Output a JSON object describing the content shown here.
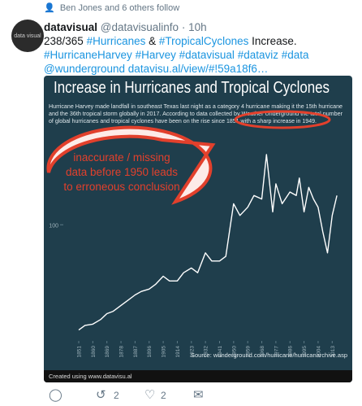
{
  "retweet_context": "Ben Jones and 6 others follow",
  "tweet": {
    "avatar_text": "data visual",
    "display_name": "datavisual",
    "handle": "@datavisualinfo",
    "time": "10h",
    "text_parts": [
      {
        "text": "238/365 ",
        "link": false
      },
      {
        "text": "#Hurricanes",
        "link": true
      },
      {
        "text": " & ",
        "link": false
      },
      {
        "text": "#TropicalCyclones",
        "link": true
      },
      {
        "text": " Increase. ",
        "link": false
      },
      {
        "text": "#HurricaneHarvey",
        "link": true
      },
      {
        "text": " ",
        "link": false
      },
      {
        "text": "#Harvey",
        "link": true
      },
      {
        "text": " ",
        "link": false
      },
      {
        "text": "#datavisual",
        "link": true
      },
      {
        "text": " ",
        "link": false
      },
      {
        "text": "#dataviz",
        "link": true
      },
      {
        "text": " ",
        "link": false
      },
      {
        "text": "#data",
        "link": true
      },
      {
        "text": " ",
        "link": false
      },
      {
        "text": "@wunderground",
        "link": true
      },
      {
        "text": " ",
        "link": false
      },
      {
        "text": "datavisu.al/view/#!59a18f6…",
        "link": true
      }
    ]
  },
  "chart_data": {
    "type": "line",
    "title": "Increase in Hurricanes and Tropical Cyclones",
    "subtitle_lines": [
      "Hurricane Harvey made landfall in southeast Texas last night as a category 4 hurricane making it the 15th hurricane",
      "and the 36th tropical storm globally in 2017. According to data collected by Weather Underground the total number",
      "of global hurricanes and tropical cyclones have been on the rise since 1851 with a sharp increase in 1949."
    ],
    "x": [
      1851,
      1855,
      1860,
      1865,
      1869,
      1873,
      1878,
      1882,
      1887,
      1891,
      1896,
      1900,
      1905,
      1909,
      1914,
      1918,
      1923,
      1927,
      1932,
      1936,
      1941,
      1945,
      1950,
      1954,
      1959,
      1963,
      1968,
      1971,
      1975,
      1977,
      1981,
      1986,
      1990,
      1992,
      1995,
      1998,
      2001,
      2004,
      2007,
      2010,
      2013,
      2016
    ],
    "series": [
      {
        "name": "Hurricanes and tropical cyclones",
        "color": "#ffffff",
        "values": [
          10,
          14,
          15,
          19,
          24,
          26,
          31,
          35,
          40,
          43,
          45,
          49,
          56,
          52,
          52,
          59,
          63,
          59,
          76,
          69,
          69,
          73,
          118,
          108,
          115,
          125,
          122,
          160,
          111,
          135,
          118,
          128,
          125,
          140,
          111,
          132,
          122,
          115,
          94,
          76,
          108,
          125
        ]
      }
    ],
    "xlim": [
      1851,
      2017
    ],
    "ylim": [
      0,
      160
    ],
    "xticks": [
      1851,
      1860,
      1869,
      1878,
      1887,
      1896,
      1905,
      1914,
      1923,
      1932,
      1941,
      1950,
      1959,
      1968,
      1977,
      1986,
      1995,
      2004,
      2013
    ],
    "yticks": [
      100
    ],
    "source": "Source: wunderground.com/hurricane/hurricanarchive.asp",
    "credit": "Created using www.datavisu.al",
    "annotation_lines": [
      "inaccurate / missing",
      "data before 1950 leads",
      "to erroneous conclusion"
    ]
  },
  "actions": {
    "retweets": 2,
    "likes": 2
  }
}
